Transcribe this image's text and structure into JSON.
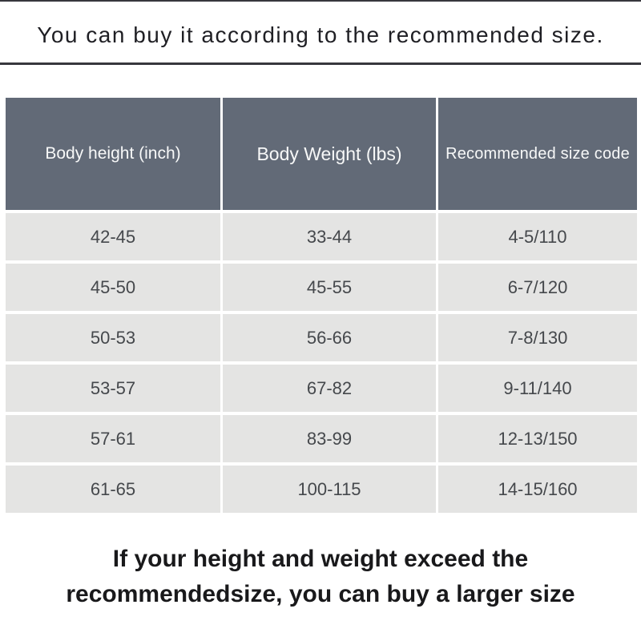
{
  "header": {
    "title": "You can buy it according to the recommended size."
  },
  "chart_data": {
    "type": "table",
    "title": "You can buy it according to the recommended size.",
    "columns": [
      "Body height (inch)",
      "Body Weight (lbs)",
      "Recommended size code"
    ],
    "rows": [
      [
        "42-45",
        "33-44",
        "4-5/110"
      ],
      [
        "45-50",
        "45-55",
        "6-7/120"
      ],
      [
        "50-53",
        "56-66",
        "7-8/130"
      ],
      [
        "53-57",
        "67-82",
        "9-11/140"
      ],
      [
        "57-61",
        "83-99",
        "12-13/150"
      ],
      [
        "61-65",
        "100-115",
        "14-15/160"
      ]
    ],
    "footnote": "If your height and weight exceed the recommendedsize, you can buy a larger size",
    "legend_position": "none",
    "grid": "white-row-and-column-separators"
  },
  "footer": {
    "line1": "If your height and weight exceed the",
    "line2": "recommendedsize, you can buy a larger size"
  },
  "colors": {
    "header_bg": "#626a77",
    "header_text": "#f7f8f8",
    "row_bg": "#e4e4e3",
    "body_text": "#45484c",
    "rule": "#37373d",
    "title_text": "#1f1f24",
    "footer_text": "#19191b"
  }
}
